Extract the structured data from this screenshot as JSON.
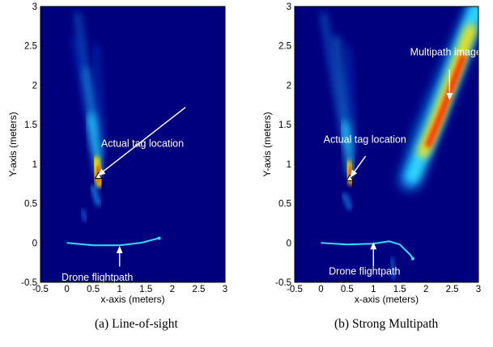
{
  "chart_data": [
    {
      "type": "heatmap",
      "caption": "(a) Line-of-sight",
      "xlabel": "x-axis (meters)",
      "ylabel": "Y-axis (meters)",
      "xlim": [
        -0.5,
        3
      ],
      "ylim": [
        -0.5,
        3
      ],
      "x_ticks": [
        "-0.5",
        "0",
        "0.5",
        "1",
        "1.5",
        "2",
        "2.5",
        "3"
      ],
      "y_ticks": [
        "-0.5",
        "0",
        "0.5",
        "1",
        "1.5",
        "2",
        "2.5",
        "3"
      ],
      "colormap": "jet",
      "annotations": [
        {
          "text": "Actual tag location",
          "point": [
            0.6,
            0.85
          ]
        },
        {
          "text": "Drone flightpath",
          "point": [
            1.0,
            -0.03
          ]
        }
      ],
      "tag_location": [
        0.6,
        0.85
      ],
      "flightpath": [
        [
          0.0,
          0.0
        ],
        [
          0.5,
          -0.03
        ],
        [
          1.0,
          -0.03
        ],
        [
          1.4,
          0.0
        ],
        [
          1.75,
          0.06
        ]
      ]
    },
    {
      "type": "heatmap",
      "caption": "(b) Strong Multipath",
      "xlabel": "x-axis (meters)",
      "ylabel": "Y-axis (meters)",
      "xlim": [
        -0.5,
        3
      ],
      "ylim": [
        -0.5,
        3
      ],
      "x_ticks": [
        "-0.5",
        "0",
        "0.5",
        "1",
        "1.5",
        "2",
        "2.5",
        "3"
      ],
      "y_ticks": [
        "-0.5",
        "0",
        "0.5",
        "1",
        "1.5",
        "2",
        "2.5",
        "3"
      ],
      "colormap": "jet",
      "annotations": [
        {
          "text": "Actual tag location",
          "point": [
            0.55,
            0.82
          ]
        },
        {
          "text": "Multipath image",
          "point": [
            2.45,
            1.8
          ]
        },
        {
          "text": "Drone flightpath",
          "point": [
            1.0,
            0.0
          ]
        }
      ],
      "tag_location": [
        0.55,
        0.82
      ],
      "flightpath": [
        [
          0.0,
          0.0
        ],
        [
          0.5,
          -0.02
        ],
        [
          1.0,
          -0.01
        ],
        [
          1.3,
          0.02
        ],
        [
          1.5,
          -0.02
        ],
        [
          1.7,
          -0.15
        ],
        [
          1.75,
          -0.2
        ]
      ]
    }
  ],
  "colors": {
    "background": "#00007f",
    "flightpath": "#33ddff"
  }
}
